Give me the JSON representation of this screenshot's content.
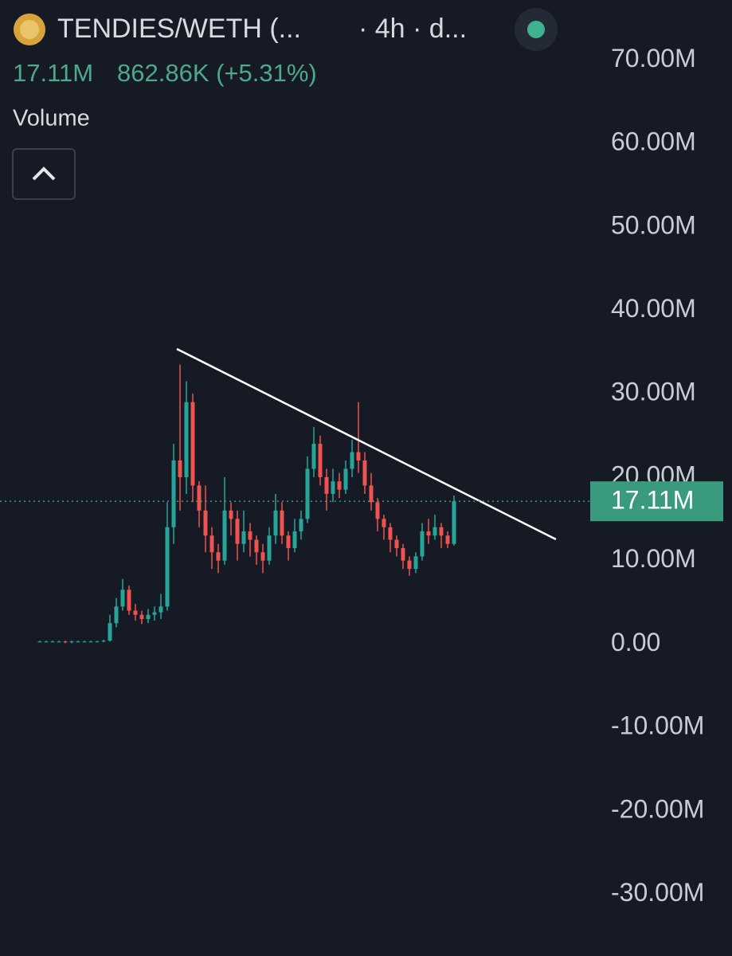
{
  "header": {
    "symbol": "TENDIES/WETH (...",
    "interval": "· 4h · d...",
    "price": "17.11M",
    "change": "862.86K (+5.31%)",
    "indicator": "Volume"
  },
  "chart_data": {
    "type": "candlestick",
    "open": [
      300000,
      300000,
      300000,
      300000,
      300000,
      200000,
      300000,
      300000,
      300000,
      300000,
      300000,
      400000,
      2500000,
      4500000,
      6500000,
      4000000,
      3500000,
      3000000,
      3500000,
      3800000,
      4500000,
      14000000,
      22000000,
      20000000,
      29000000,
      19000000,
      16000000,
      13000000,
      11000000,
      10000000,
      16000000,
      15000000,
      12000000,
      13500000,
      12500000,
      11000000,
      10000000,
      13000000,
      16000000,
      13000000,
      11500000,
      13500000,
      15000000,
      21000000,
      24000000,
      20000000,
      18000000,
      19500000,
      18500000,
      21000000,
      23000000,
      22000000,
      19000000,
      17000000,
      15000000,
      14000000,
      12500000,
      11500000,
      10000000,
      9000000,
      10500000,
      13500000,
      13000000,
      14000000,
      13000000,
      12000000
    ],
    "high": [
      400000,
      400000,
      400000,
      400000,
      400000,
      400000,
      400000,
      400000,
      400000,
      400000,
      500000,
      3500000,
      5500000,
      7800000,
      7000000,
      4800000,
      4000000,
      4200000,
      4500000,
      6000000,
      17000000,
      24000000,
      33500000,
      31500000,
      30000000,
      19500000,
      19000000,
      14000000,
      12000000,
      20000000,
      17000000,
      16000000,
      16000000,
      14500000,
      13000000,
      12000000,
      14000000,
      18000000,
      17000000,
      13500000,
      15000000,
      16000000,
      22500000,
      26000000,
      25000000,
      21000000,
      21000000,
      20500000,
      22000000,
      24500000,
      29000000,
      23000000,
      20500000,
      17500000,
      15500000,
      14500000,
      13000000,
      12000000,
      10500000,
      11000000,
      14500000,
      15000000,
      15500000,
      14500000,
      13500000,
      17800000
    ],
    "low": [
      200000,
      200000,
      200000,
      200000,
      100000,
      100000,
      200000,
      200000,
      200000,
      200000,
      200000,
      300000,
      2000000,
      4000000,
      3500000,
      2800000,
      2400000,
      2500000,
      2800000,
      3000000,
      4000000,
      12000000,
      16000000,
      18000000,
      17000000,
      14000000,
      11000000,
      9000000,
      8500000,
      9500000,
      13000000,
      10000000,
      11000000,
      10500000,
      9500000,
      8500000,
      9500000,
      12000000,
      12000000,
      10000000,
      11000000,
      12500000,
      14500000,
      20000000,
      19000000,
      16000000,
      17000000,
      17500000,
      18000000,
      20000000,
      20500000,
      18000000,
      16000000,
      13500000,
      12500000,
      11000000,
      10500000,
      9000000,
      8200000,
      8500000,
      10000000,
      12000000,
      12500000,
      11500000,
      11500000,
      11800000
    ],
    "close": [
      300000,
      300000,
      300000,
      300000,
      200000,
      300000,
      300000,
      300000,
      300000,
      300000,
      400000,
      2500000,
      4500000,
      6500000,
      4000000,
      3500000,
      3000000,
      3500000,
      3800000,
      4500000,
      14000000,
      22000000,
      20000000,
      29000000,
      19000000,
      16000000,
      13000000,
      11000000,
      10000000,
      16000000,
      15000000,
      12000000,
      13500000,
      12500000,
      11000000,
      10000000,
      13000000,
      16000000,
      13000000,
      11500000,
      13500000,
      15000000,
      21000000,
      24000000,
      20000000,
      18000000,
      19500000,
      18500000,
      21000000,
      23000000,
      22000000,
      19000000,
      17000000,
      15000000,
      14000000,
      12500000,
      11500000,
      10000000,
      9000000,
      10500000,
      13500000,
      13000000,
      14000000,
      13000000,
      12000000,
      17110000
    ],
    "up_color": "#26a69a",
    "down_color": "#ef5350",
    "ylim": [
      -37400000,
      77200000
    ],
    "yticks": [
      {
        "value": 70000000,
        "label": "70.00M"
      },
      {
        "value": 60000000,
        "label": "60.00M"
      },
      {
        "value": 50000000,
        "label": "50.00M"
      },
      {
        "value": 40000000,
        "label": "40.00M"
      },
      {
        "value": 30000000,
        "label": "30.00M"
      },
      {
        "value": 20000000,
        "label": "20.00M"
      },
      {
        "value": 10000000,
        "label": "10.00M"
      },
      {
        "value": 0,
        "label": "0.00"
      },
      {
        "value": -10000000,
        "label": "-10.00M"
      },
      {
        "value": -20000000,
        "label": "-20.00M"
      },
      {
        "value": -30000000,
        "label": "-30.00M"
      }
    ],
    "last_price": {
      "value": 17110000,
      "label": "17.11M",
      "color": "#3a9a7d"
    }
  }
}
